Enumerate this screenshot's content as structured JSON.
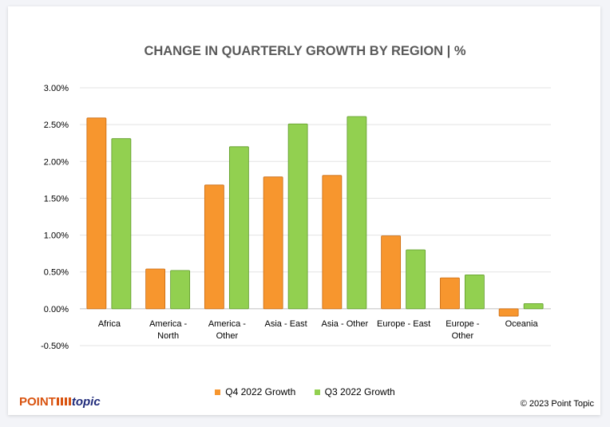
{
  "chart_data": {
    "type": "bar",
    "title": "CHANGE IN QUARTERLY GROWTH BY REGION | %",
    "categories": [
      [
        "Africa"
      ],
      [
        "America -",
        "North"
      ],
      [
        "America -",
        "Other"
      ],
      [
        "Asia - East"
      ],
      [
        "Asia - Other"
      ],
      [
        "Europe - East"
      ],
      [
        "Europe -",
        "Other"
      ],
      [
        "Oceania"
      ]
    ],
    "series": [
      {
        "name": "Q4 2022 Growth",
        "color": "#f7962e",
        "values": [
          2.59,
          0.54,
          1.68,
          1.79,
          1.81,
          0.99,
          0.42,
          -0.1
        ]
      },
      {
        "name": "Q3 2022 Growth",
        "color": "#92d050",
        "values": [
          2.31,
          0.52,
          2.2,
          2.51,
          2.61,
          0.8,
          0.46,
          0.07
        ]
      }
    ],
    "yticks": [
      "3.00%",
      "2.50%",
      "2.00%",
      "1.50%",
      "1.00%",
      "0.50%",
      "0.00%",
      "-0.50%"
    ],
    "ytick_values": [
      3.0,
      2.5,
      2.0,
      1.5,
      1.0,
      0.5,
      0.0,
      -0.5
    ],
    "ylim": [
      -0.5,
      3.0
    ],
    "xlabel": "",
    "ylabel": "",
    "grid": true,
    "legend_position": "bottom"
  },
  "footer": {
    "logo_point": "POINT",
    "logo_topic": "topic",
    "copyright": "© 2023 Point Topic"
  }
}
